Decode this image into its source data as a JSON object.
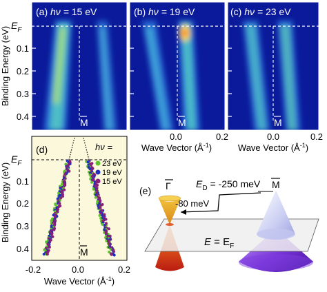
{
  "panels_top": [
    {
      "id": "a",
      "label": "(a)",
      "hv_value": "15 eV"
    },
    {
      "id": "b",
      "label": "(b)",
      "hv_value": "19 eV"
    },
    {
      "id": "c",
      "label": "(c)",
      "hv_value": "23 eV"
    }
  ],
  "hv_symbol": "hν = ",
  "ef_label": "E",
  "ef_sub": "F",
  "mbar_label": "M",
  "ylabel": "Binding Energy (eV)",
  "xlabel_text": "Wave Vector (Å",
  "xlabel_exp": "-1",
  "xlabel_close": ")",
  "y_ticks": [
    "0.1",
    "0.2",
    "0.3",
    "0.4"
  ],
  "x_ticks_top": [
    "0.0",
    "0.2"
  ],
  "x_ticks_d": [
    "-0.2",
    "0.0",
    "0.2"
  ],
  "panel_d": {
    "label": "(d)",
    "legend_title": "hν =",
    "legend": [
      {
        "name": "23 eV",
        "color": "#5cc12a"
      },
      {
        "name": "19 eV",
        "color": "#1f2fb8"
      },
      {
        "name": "15 eV",
        "color": "#8a1f7a"
      }
    ]
  },
  "panel_e": {
    "label": "(e)",
    "gamma_label": "Γ",
    "m_label": "M",
    "ed_text": "E",
    "ed_sub": "D",
    "ed_value": " = -250 meV",
    "shift_label": "-80 meV",
    "plane_label_e": "E",
    "plane_eq": " = E",
    "plane_sub": "F"
  },
  "colors": {
    "arpes_bg": "#0a1a9a",
    "panel_d_bg": "#fbf8dc",
    "accent_text": "#ffffff"
  }
}
